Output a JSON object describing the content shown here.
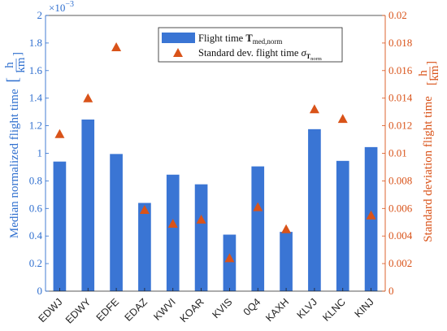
{
  "chart_data": {
    "type": "bar",
    "categories": [
      "EDWJ",
      "EDWY",
      "EDFE",
      "EDAZ",
      "KWVI",
      "KOAR",
      "KVIS",
      "0Q4",
      "KAXH",
      "KLVJ",
      "KLNC",
      "KINJ"
    ],
    "series": [
      {
        "name": "Flight time T_med,norm",
        "axis": "left",
        "kind": "bar",
        "values": [
          0.94,
          1.245,
          0.995,
          0.64,
          0.845,
          0.775,
          0.41,
          0.905,
          0.43,
          1.175,
          0.945,
          1.045
        ]
      },
      {
        "name": "Standard dev. flight time σ_T_norm",
        "axis": "right",
        "kind": "marker",
        "values": [
          0.0114,
          0.014,
          0.0177,
          0.0059,
          0.0049,
          0.0052,
          0.0024,
          0.0061,
          0.0045,
          0.0132,
          0.0125,
          0.0055
        ]
      }
    ],
    "left_axis": {
      "label": "Median normalized flight time",
      "unit_num": "h",
      "unit_den": "km",
      "multiplier": "×10",
      "multiplier_exp": "−3",
      "ylim": [
        0,
        2
      ],
      "ticks": [
        "0",
        "0.2",
        "0.4",
        "0.6",
        "0.8",
        "1",
        "1.2",
        "1.4",
        "1.6",
        "1.8",
        "2"
      ]
    },
    "right_axis": {
      "label": "Standard deviation flight time",
      "unit_num": "h",
      "unit_den": "km",
      "ylim": [
        0,
        0.02
      ],
      "ticks": [
        "0",
        "0.002",
        "0.004",
        "0.006",
        "0.008",
        "0.01",
        "0.012",
        "0.014",
        "0.016",
        "0.018",
        "0.02"
      ]
    },
    "legend": {
      "placement": "top-center",
      "bar_label": "Flight time ",
      "bar_symbol": "T",
      "bar_sub": "med,norm",
      "marker_label": "Standard dev. flight time ",
      "marker_symbol": "σ",
      "marker_sub_T": "T",
      "marker_sub_norm": "norm"
    },
    "grid": false,
    "colors": {
      "bar": "#3a75d4",
      "marker": "#d95319",
      "left_axis": "#2f6fcf",
      "right_axis": "#d95319"
    }
  }
}
